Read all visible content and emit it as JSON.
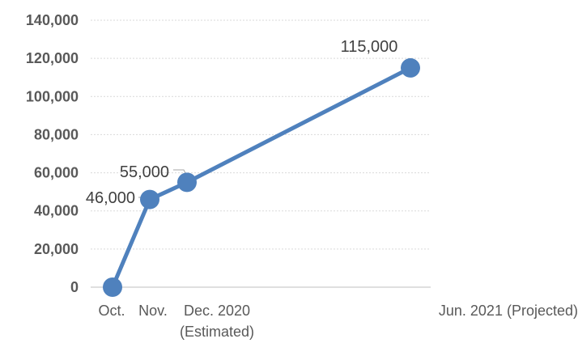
{
  "chart_data": {
    "type": "line",
    "x": [
      "Oct.",
      "Nov.",
      "Dec. 2020",
      "Jun. 2021 (Projected)"
    ],
    "tick_labels": [
      [
        "Oct."
      ],
      [
        "Nov."
      ],
      [
        "Dec. 2020",
        "(Estimated)"
      ],
      [
        "Jun. 2021 (Projected)"
      ]
    ],
    "series": [
      {
        "values": [
          0,
          46000,
          55000,
          115000
        ],
        "data_labels": [
          "",
          "46,000",
          "55,000",
          "115,000"
        ],
        "color": "#4f81bd"
      }
    ],
    "ylim": [
      0,
      140000
    ],
    "yticks": [
      "0",
      "20,000",
      "40,000",
      "60,000",
      "80,000",
      "100,000",
      "120,000",
      "140,000"
    ],
    "grid": true,
    "legend": "none"
  }
}
